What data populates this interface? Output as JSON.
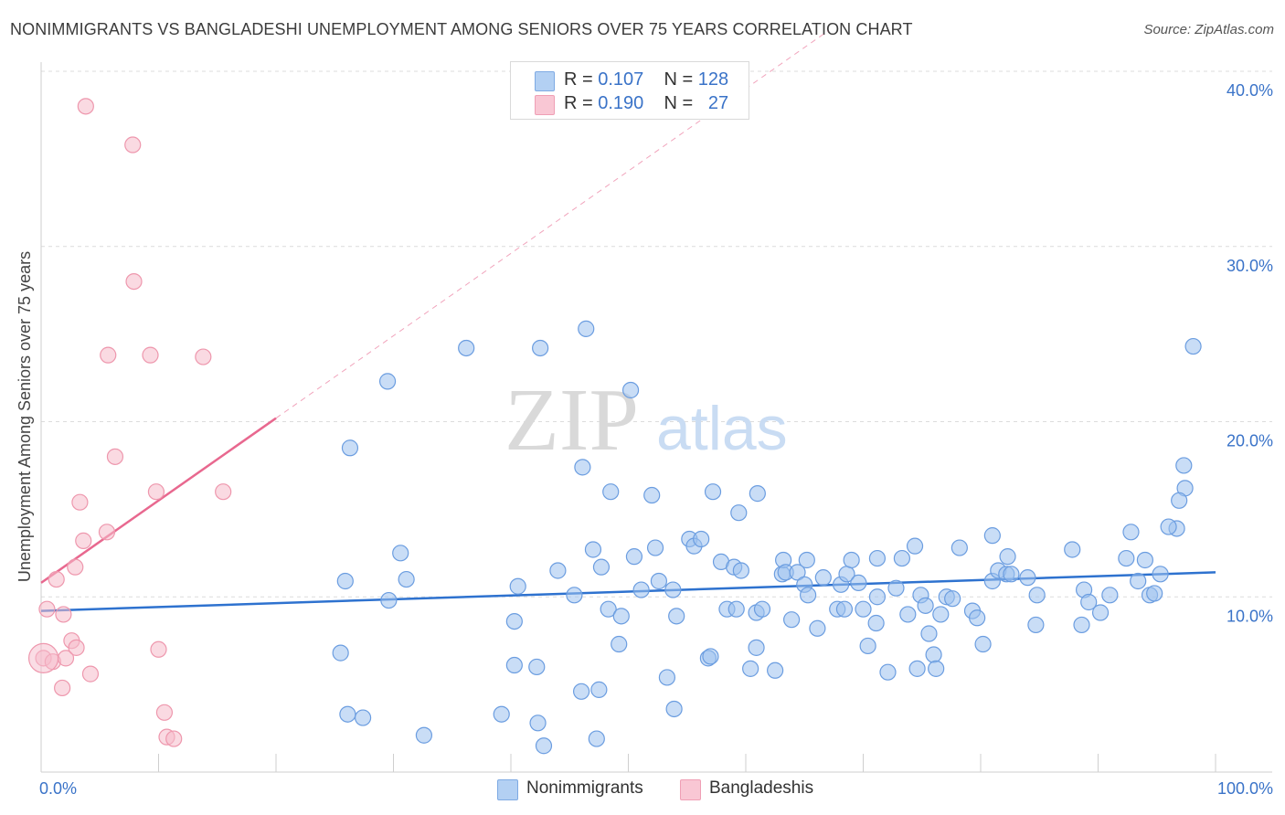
{
  "title": "NONIMMIGRANTS VS BANGLADESHI UNEMPLOYMENT AMONG SENIORS OVER 75 YEARS CORRELATION CHART",
  "source": "Source: ZipAtlas.com",
  "watermark": {
    "zip": "ZIP",
    "atlas": "atlas"
  },
  "legend": {
    "rows": [
      {
        "r_label": "R =",
        "r_value": "0.107",
        "n_label": "N =",
        "n_value": "128"
      },
      {
        "r_label": "R =",
        "r_value": "0.190",
        "n_label": "N =",
        "n_value": "27"
      }
    ]
  },
  "chart_data": {
    "type": "scatter",
    "title": "NONIMMIGRANTS VS BANGLADESHI UNEMPLOYMENT AMONG SENIORS OVER 75 YEARS CORRELATION CHART",
    "xlabel": "",
    "ylabel": "Unemployment Among Seniors over 75 years",
    "xlim": [
      0,
      100
    ],
    "ylim": [
      0,
      40
    ],
    "y_ticks": [
      10,
      20,
      30,
      40
    ],
    "y_tick_labels": [
      "10.0%",
      "20.0%",
      "30.0%",
      "40.0%"
    ],
    "x_tick_labels": [
      "0.0%",
      "100.0%"
    ],
    "grid": true,
    "colors": {
      "nonimmigrants": "#9dc1ef",
      "nonimmigrants_stroke": "#6b9de0",
      "nonimmigrants_line": "#2e72cf",
      "bangladeshis": "#f6bccb",
      "bangladeshis_stroke": "#ee97ad",
      "bangladeshis_line": "#e8688f"
    },
    "series": [
      {
        "name": "Nonimmigrants",
        "R": 0.107,
        "N": 128,
        "trend": {
          "x": [
            0,
            100
          ],
          "y": [
            9.2,
            11.4
          ]
        },
        "points": [
          [
            25.5,
            6.8
          ],
          [
            25.9,
            10.9
          ],
          [
            26.1,
            3.3
          ],
          [
            26.3,
            18.5
          ],
          [
            27.4,
            3.1
          ],
          [
            29.5,
            22.3
          ],
          [
            29.6,
            9.8
          ],
          [
            30.6,
            12.5
          ],
          [
            31.1,
            11.0
          ],
          [
            32.6,
            2.1
          ],
          [
            36.2,
            24.2
          ],
          [
            39.2,
            3.3
          ],
          [
            40.3,
            6.1
          ],
          [
            40.3,
            8.6
          ],
          [
            40.6,
            10.6
          ],
          [
            42.2,
            6.0
          ],
          [
            42.3,
            2.8
          ],
          [
            42.5,
            24.2
          ],
          [
            42.8,
            1.5
          ],
          [
            44.0,
            11.5
          ],
          [
            45.4,
            10.1
          ],
          [
            46.0,
            4.6
          ],
          [
            46.1,
            17.4
          ],
          [
            46.4,
            25.3
          ],
          [
            47.0,
            12.7
          ],
          [
            47.3,
            1.9
          ],
          [
            47.5,
            4.7
          ],
          [
            47.7,
            11.7
          ],
          [
            48.3,
            9.3
          ],
          [
            48.5,
            16.0
          ],
          [
            49.2,
            7.3
          ],
          [
            49.4,
            8.9
          ],
          [
            50.2,
            21.8
          ],
          [
            50.5,
            12.3
          ],
          [
            51.1,
            10.4
          ],
          [
            52.0,
            15.8
          ],
          [
            52.3,
            12.8
          ],
          [
            52.6,
            10.9
          ],
          [
            53.3,
            5.4
          ],
          [
            53.8,
            10.4
          ],
          [
            53.9,
            3.6
          ],
          [
            54.1,
            8.9
          ],
          [
            55.2,
            13.3
          ],
          [
            55.6,
            12.9
          ],
          [
            56.2,
            13.3
          ],
          [
            56.8,
            6.5
          ],
          [
            57.0,
            6.6
          ],
          [
            57.2,
            16.0
          ],
          [
            57.9,
            12.0
          ],
          [
            58.4,
            9.3
          ],
          [
            59.0,
            11.7
          ],
          [
            59.2,
            9.3
          ],
          [
            59.4,
            14.8
          ],
          [
            59.6,
            11.5
          ],
          [
            60.4,
            5.9
          ],
          [
            60.9,
            7.1
          ],
          [
            60.9,
            9.1
          ],
          [
            61.0,
            15.9
          ],
          [
            61.4,
            9.3
          ],
          [
            62.5,
            5.8
          ],
          [
            63.1,
            11.3
          ],
          [
            63.2,
            12.1
          ],
          [
            63.4,
            11.4
          ],
          [
            63.9,
            8.7
          ],
          [
            64.4,
            11.4
          ],
          [
            65.0,
            10.7
          ],
          [
            65.2,
            12.1
          ],
          [
            65.3,
            10.1
          ],
          [
            66.1,
            8.2
          ],
          [
            66.6,
            11.1
          ],
          [
            67.8,
            9.3
          ],
          [
            68.1,
            10.7
          ],
          [
            68.4,
            9.3
          ],
          [
            68.6,
            11.3
          ],
          [
            69.0,
            12.1
          ],
          [
            69.6,
            10.8
          ],
          [
            70.0,
            9.3
          ],
          [
            70.4,
            7.2
          ],
          [
            71.1,
            8.5
          ],
          [
            71.2,
            12.2
          ],
          [
            71.2,
            10.0
          ],
          [
            72.1,
            5.7
          ],
          [
            72.8,
            10.5
          ],
          [
            73.3,
            12.2
          ],
          [
            73.8,
            9.0
          ],
          [
            74.4,
            12.9
          ],
          [
            74.6,
            5.9
          ],
          [
            74.9,
            10.1
          ],
          [
            75.3,
            9.5
          ],
          [
            75.6,
            7.9
          ],
          [
            76.0,
            6.7
          ],
          [
            76.2,
            5.9
          ],
          [
            76.6,
            9.0
          ],
          [
            77.1,
            10.0
          ],
          [
            77.6,
            9.9
          ],
          [
            78.2,
            12.8
          ],
          [
            79.3,
            9.2
          ],
          [
            79.7,
            8.8
          ],
          [
            80.2,
            7.3
          ],
          [
            81.0,
            10.9
          ],
          [
            81.0,
            13.5
          ],
          [
            81.5,
            11.5
          ],
          [
            82.2,
            11.3
          ],
          [
            82.3,
            12.3
          ],
          [
            82.6,
            11.3
          ],
          [
            84.0,
            11.1
          ],
          [
            84.7,
            8.4
          ],
          [
            84.8,
            10.1
          ],
          [
            87.8,
            12.7
          ],
          [
            88.6,
            8.4
          ],
          [
            88.8,
            10.4
          ],
          [
            89.2,
            9.7
          ],
          [
            90.2,
            9.1
          ],
          [
            91.0,
            10.1
          ],
          [
            92.4,
            12.2
          ],
          [
            92.8,
            13.7
          ],
          [
            93.4,
            10.9
          ],
          [
            94.0,
            12.1
          ],
          [
            94.4,
            10.1
          ],
          [
            94.8,
            10.2
          ],
          [
            95.3,
            11.3
          ],
          [
            96.7,
            13.9
          ],
          [
            98.1,
            24.3
          ],
          [
            97.4,
            16.2
          ],
          [
            97.3,
            17.5
          ],
          [
            96.9,
            15.5
          ],
          [
            96.0,
            14.0
          ]
        ]
      },
      {
        "name": "Bangladeshis",
        "R": 0.19,
        "N": 27,
        "trend": {
          "x": [
            0,
            20
          ],
          "y": [
            10.8,
            20.2
          ]
        },
        "trend_extended": {
          "x": [
            20,
            67
          ],
          "y": [
            20.2,
            42.3
          ]
        },
        "points": [
          [
            0.2,
            6.5
          ],
          [
            0.5,
            9.3
          ],
          [
            1.0,
            6.3
          ],
          [
            1.3,
            11.0
          ],
          [
            1.8,
            4.8
          ],
          [
            1.9,
            9.0
          ],
          [
            2.1,
            6.5
          ],
          [
            2.6,
            7.5
          ],
          [
            2.9,
            11.7
          ],
          [
            3.0,
            7.1
          ],
          [
            3.3,
            15.4
          ],
          [
            3.6,
            13.2
          ],
          [
            3.8,
            38.0
          ],
          [
            4.2,
            5.6
          ],
          [
            5.6,
            13.7
          ],
          [
            5.7,
            23.8
          ],
          [
            6.3,
            18.0
          ],
          [
            7.8,
            35.8
          ],
          [
            7.9,
            28.0
          ],
          [
            9.3,
            23.8
          ],
          [
            9.8,
            16.0
          ],
          [
            10.0,
            7.0
          ],
          [
            10.5,
            3.4
          ],
          [
            10.7,
            2.0
          ],
          [
            11.3,
            1.9
          ],
          [
            13.8,
            23.7
          ],
          [
            15.5,
            16.0
          ]
        ]
      }
    ]
  },
  "bottom_legend": {
    "nonimmigrants": "Nonimmigrants",
    "bangladeshis": "Bangladeshis"
  }
}
